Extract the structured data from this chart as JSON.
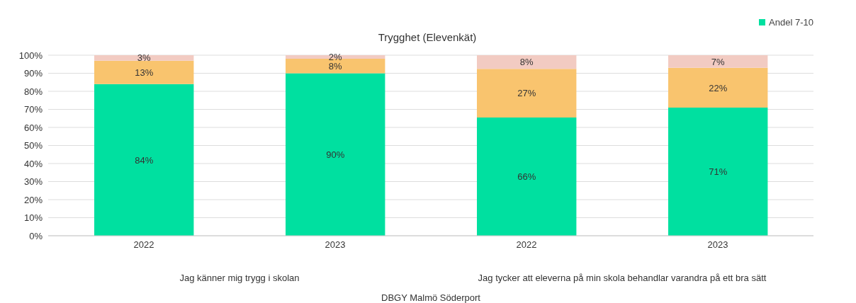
{
  "chart_data": {
    "type": "bar",
    "title": "Trygghet  (Elevenkät)",
    "xlabel": "DBGY Malmö Söderport",
    "categories": [
      "2022",
      "2023",
      "2022",
      "2023"
    ],
    "annotations": [
      "Jag känner mig trygg i skolan",
      "Jag tycker att eleverna på min skola behandlar varandra på ett bra sätt"
    ],
    "stacked": true,
    "series": [
      {
        "name": "Andel 7-10",
        "color": "#00e0a0",
        "values": [
          84,
          90,
          65.5,
          71
        ],
        "value_labels": [
          "84%",
          "90%",
          "66%",
          "71%"
        ]
      },
      {
        "color": "#f9c46e",
        "values": [
          13,
          8,
          27,
          22
        ],
        "value_labels": [
          "13%",
          "8%",
          "27%",
          "22%"
        ]
      },
      {
        "color": "#f2cbc2",
        "values": [
          3,
          2,
          7.5,
          7
        ],
        "value_labels": [
          "3%",
          "2%",
          "8%",
          "7%"
        ]
      }
    ],
    "ylim": [
      0,
      100
    ],
    "yticks": [
      {
        "value": 0,
        "label": "0%"
      },
      {
        "value": 10,
        "label": "10%"
      },
      {
        "value": 20,
        "label": "20%"
      },
      {
        "value": 30,
        "label": "30%"
      },
      {
        "value": 40,
        "label": "40%"
      },
      {
        "value": 50,
        "label": "50%"
      },
      {
        "value": 60,
        "label": "60%"
      },
      {
        "value": 70,
        "label": "70%"
      },
      {
        "value": 80,
        "label": "80%"
      },
      {
        "value": 90,
        "label": "90%"
      },
      {
        "value": 100,
        "label": "100%"
      }
    ],
    "grid": "y",
    "legend": "top right"
  }
}
